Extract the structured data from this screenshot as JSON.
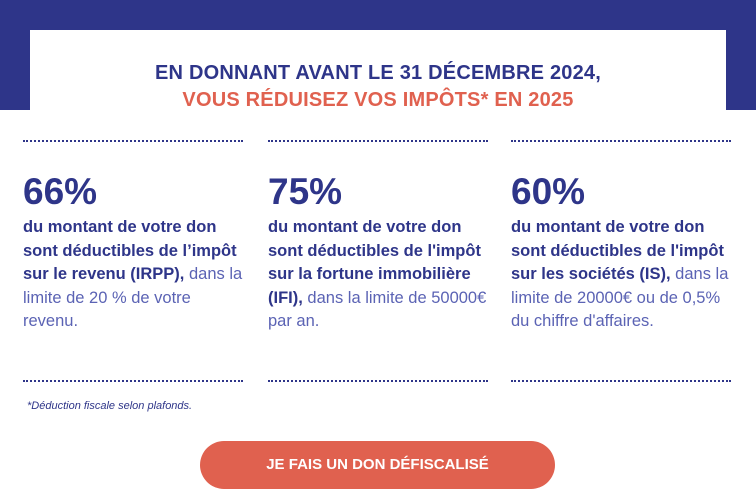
{
  "header": {
    "line1": "EN DONNANT AVANT LE 31 DÉCEMBRE 2024,",
    "line2": "VOUS RÉDUISEZ VOS IMPÔTS* EN 2025"
  },
  "colors": {
    "navy": "#2e3589",
    "coral": "#e0614f",
    "light_text": "#5b63b4"
  },
  "columns": [
    {
      "percent": "66%",
      "bold_text": "du montant de votre don sont déductibles de l’impôt sur le revenu (IRPP),",
      "light_text": " dans la limite de 20 % de votre revenu."
    },
    {
      "percent": "75%",
      "bold_text": "du montant de votre don sont déductibles de l'impôt sur la fortune immobilière (IFI),",
      "light_text": " dans la limite de 50000€ par an."
    },
    {
      "percent": "60%",
      "bold_text": "du montant de votre don sont déductibles de l'impôt sur les sociétés (IS),",
      "light_text": " dans la limite de 20000€ ou de 0,5% du chiffre d'affaires."
    }
  ],
  "footnote": "*Déduction fiscale selon plafonds.",
  "cta": {
    "label": "JE FAIS UN DON DÉFISCALISÉ"
  }
}
